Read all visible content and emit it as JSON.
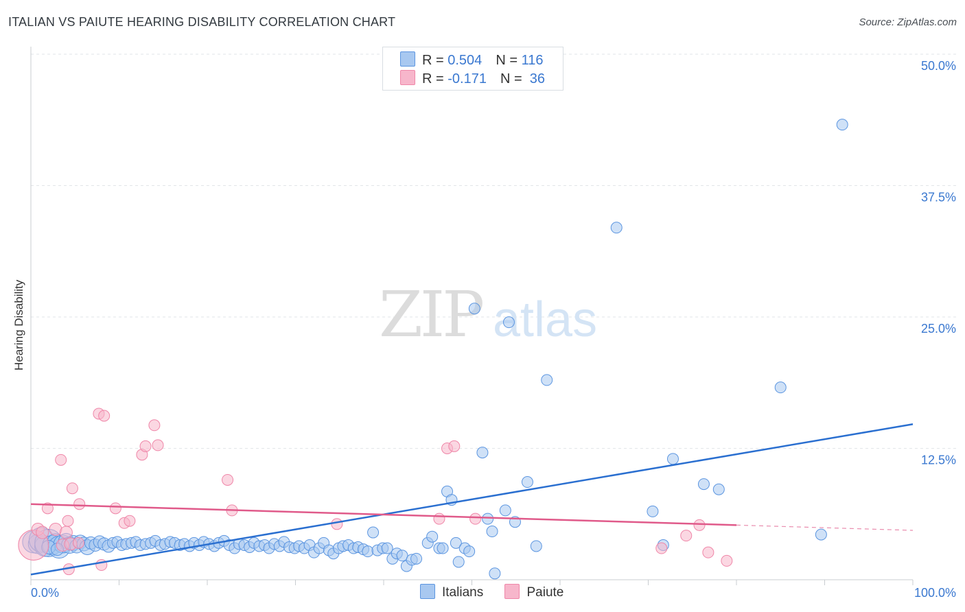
{
  "title": "ITALIAN VS PAIUTE HEARING DISABILITY CORRELATION CHART",
  "source": "Source: ZipAtlas.com",
  "watermark": {
    "part1": "ZIP",
    "part2": "atlas"
  },
  "legend_top": {
    "rows": [
      {
        "r_label": "R = ",
        "r_value": "0.504",
        "n_label": "N = ",
        "n_value": "116",
        "color": "#a8c8f0"
      },
      {
        "r_label": "R = ",
        "r_value": "-0.171",
        "n_label": "N = ",
        "n_value": " 36",
        "color": "#f7b6cb"
      }
    ]
  },
  "chart_data": {
    "type": "scatter",
    "title": "ITALIAN VS PAIUTE HEARING DISABILITY CORRELATION CHART",
    "xlabel": "",
    "ylabel": "Hearing Disability",
    "xlim": [
      0,
      100
    ],
    "ylim": [
      0,
      50
    ],
    "x_tick_labels": [
      {
        "value": 0,
        "label": "0.0%"
      },
      {
        "value": 100,
        "label": "100.0%"
      }
    ],
    "y_tick_labels": [
      {
        "value": 12.5,
        "label": "12.5%"
      },
      {
        "value": 25,
        "label": "25.0%"
      },
      {
        "value": 37.5,
        "label": "37.5%"
      },
      {
        "value": 50,
        "label": "50.0%"
      }
    ],
    "grid": true,
    "legend_position": "bottom-center",
    "series": [
      {
        "name": "Italians",
        "color": "#5b95e0",
        "fill": "#a8c8f0",
        "trend": {
          "x": [
            0,
            100
          ],
          "y": [
            0.5,
            14.8
          ],
          "color": "#2a6fd0",
          "dashed_from": null
        },
        "points": [
          [
            0.3,
            3.6,
            16
          ],
          [
            0.8,
            3.4,
            14
          ],
          [
            1.2,
            3.8,
            18
          ],
          [
            1.6,
            3.2,
            15
          ],
          [
            2.0,
            3.5,
            20
          ],
          [
            2.4,
            3.3,
            14
          ],
          [
            2.8,
            3.6,
            12
          ],
          [
            3.2,
            3.1,
            16
          ],
          [
            3.6,
            3.4,
            13
          ],
          [
            4.0,
            3.7,
            11
          ],
          [
            4.4,
            3.3,
            12
          ],
          [
            4.8,
            3.5,
            11
          ],
          [
            5.2,
            3.2,
            10
          ],
          [
            5.6,
            3.6,
            10
          ],
          [
            6.0,
            3.4,
            10
          ],
          [
            6.4,
            3.1,
            11
          ],
          [
            6.8,
            3.5,
            9
          ],
          [
            7.3,
            3.3,
            9
          ],
          [
            7.8,
            3.6,
            9
          ],
          [
            8.3,
            3.4,
            9
          ],
          [
            8.8,
            3.2,
            9
          ],
          [
            9.3,
            3.5,
            8
          ],
          [
            9.8,
            3.6,
            8
          ],
          [
            10.3,
            3.3,
            8
          ],
          [
            10.8,
            3.4,
            8
          ],
          [
            11.4,
            3.5,
            8
          ],
          [
            11.9,
            3.6,
            8
          ],
          [
            12.4,
            3.3,
            8
          ],
          [
            13.0,
            3.4,
            8
          ],
          [
            13.6,
            3.5,
            8
          ],
          [
            14.1,
            3.7,
            8
          ],
          [
            14.7,
            3.3,
            8
          ],
          [
            15.2,
            3.4,
            8
          ],
          [
            15.8,
            3.6,
            8
          ],
          [
            16.3,
            3.5,
            8
          ],
          [
            16.9,
            3.3,
            8
          ],
          [
            17.4,
            3.4,
            8
          ],
          [
            18.0,
            3.2,
            8
          ],
          [
            18.5,
            3.5,
            8
          ],
          [
            19.1,
            3.3,
            8
          ],
          [
            19.6,
            3.6,
            8
          ],
          [
            20.2,
            3.4,
            8
          ],
          [
            20.8,
            3.2,
            8
          ],
          [
            21.3,
            3.5,
            8
          ],
          [
            21.9,
            3.7,
            8
          ],
          [
            22.5,
            3.3,
            8
          ],
          [
            23.1,
            3.0,
            8
          ],
          [
            23.6,
            3.4,
            8
          ],
          [
            24.2,
            3.3,
            8
          ],
          [
            24.8,
            3.1,
            8
          ],
          [
            25.3,
            3.5,
            8
          ],
          [
            25.9,
            3.2,
            8
          ],
          [
            26.5,
            3.3,
            8
          ],
          [
            27.0,
            3.0,
            8
          ],
          [
            27.6,
            3.4,
            8
          ],
          [
            28.2,
            3.2,
            8
          ],
          [
            28.7,
            3.6,
            8
          ],
          [
            29.3,
            3.1,
            8
          ],
          [
            29.9,
            3.0,
            8
          ],
          [
            30.4,
            3.2,
            8
          ],
          [
            31.0,
            3.0,
            8
          ],
          [
            31.6,
            3.3,
            8
          ],
          [
            32.1,
            2.6,
            8
          ],
          [
            32.7,
            3.0,
            8
          ],
          [
            33.2,
            3.5,
            8
          ],
          [
            33.8,
            2.8,
            8
          ],
          [
            34.3,
            2.5,
            8
          ],
          [
            34.9,
            3.0,
            8
          ],
          [
            35.4,
            3.2,
            8
          ],
          [
            36.0,
            3.3,
            8
          ],
          [
            36.6,
            3.0,
            8
          ],
          [
            37.1,
            3.1,
            8
          ],
          [
            37.7,
            2.9,
            8
          ],
          [
            38.2,
            2.7,
            8
          ],
          [
            38.8,
            4.5,
            8
          ],
          [
            39.3,
            2.8,
            8
          ],
          [
            39.9,
            3.0,
            8
          ],
          [
            40.4,
            3.0,
            8
          ],
          [
            41.0,
            2.0,
            8
          ],
          [
            41.5,
            2.5,
            8
          ],
          [
            42.1,
            2.3,
            8
          ],
          [
            42.6,
            1.3,
            8
          ],
          [
            43.2,
            1.9,
            8
          ],
          [
            43.7,
            2.0,
            8
          ],
          [
            45.0,
            3.5,
            8
          ],
          [
            45.5,
            4.1,
            8
          ],
          [
            46.3,
            3.0,
            8
          ],
          [
            46.7,
            3.0,
            8
          ],
          [
            47.2,
            8.4,
            8
          ],
          [
            47.7,
            7.6,
            8
          ],
          [
            48.2,
            3.5,
            8
          ],
          [
            49.2,
            3.0,
            8
          ],
          [
            48.5,
            1.7,
            8
          ],
          [
            49.7,
            2.7,
            8
          ],
          [
            50.3,
            25.8,
            8
          ],
          [
            51.2,
            12.1,
            8
          ],
          [
            51.8,
            5.8,
            8
          ],
          [
            52.3,
            4.6,
            8
          ],
          [
            52.6,
            0.6,
            8
          ],
          [
            53.8,
            6.6,
            8
          ],
          [
            54.2,
            24.5,
            8
          ],
          [
            54.9,
            5.5,
            8
          ],
          [
            56.3,
            9.3,
            8
          ],
          [
            57.3,
            3.2,
            8
          ],
          [
            58.5,
            19.0,
            8
          ],
          [
            66.4,
            33.5,
            8
          ],
          [
            70.5,
            6.5,
            8
          ],
          [
            71.7,
            3.3,
            8
          ],
          [
            72.8,
            11.5,
            8
          ],
          [
            76.3,
            9.1,
            8
          ],
          [
            78.0,
            8.6,
            8
          ],
          [
            85.0,
            18.3,
            8
          ],
          [
            89.6,
            4.3,
            8
          ],
          [
            92.0,
            43.3,
            8
          ],
          [
            2.0,
            3.1,
            10
          ],
          [
            3.0,
            2.9,
            9
          ]
        ]
      },
      {
        "name": "Paiute",
        "color": "#ef86a8",
        "fill": "#f7b6cb",
        "trend": {
          "x": [
            0,
            100
          ],
          "y": [
            7.2,
            4.7
          ],
          "color": "#e05a8a",
          "dashed_from": 80
        },
        "points": [
          [
            0.3,
            3.3,
            22
          ],
          [
            0.8,
            4.8,
            9
          ],
          [
            1.3,
            4.5,
            9
          ],
          [
            1.9,
            6.8,
            8
          ],
          [
            2.8,
            4.8,
            9
          ],
          [
            3.4,
            11.4,
            8
          ],
          [
            3.6,
            3.3,
            9
          ],
          [
            4.0,
            4.5,
            9
          ],
          [
            4.2,
            5.6,
            8
          ],
          [
            4.3,
            1.0,
            8
          ],
          [
            4.5,
            3.4,
            9
          ],
          [
            4.7,
            8.7,
            8
          ],
          [
            5.4,
            3.5,
            8
          ],
          [
            5.5,
            7.2,
            8
          ],
          [
            7.7,
            15.8,
            8
          ],
          [
            8.0,
            1.4,
            8
          ],
          [
            8.3,
            15.6,
            8
          ],
          [
            9.6,
            6.8,
            8
          ],
          [
            10.6,
            5.4,
            8
          ],
          [
            11.2,
            5.6,
            8
          ],
          [
            12.6,
            11.9,
            8
          ],
          [
            13.0,
            12.7,
            8
          ],
          [
            14.0,
            14.7,
            8
          ],
          [
            14.4,
            12.8,
            8
          ],
          [
            22.3,
            9.5,
            8
          ],
          [
            22.8,
            6.6,
            8
          ],
          [
            34.7,
            5.3,
            8
          ],
          [
            46.3,
            5.8,
            8
          ],
          [
            47.2,
            12.5,
            8
          ],
          [
            48.0,
            12.7,
            8
          ],
          [
            50.4,
            5.8,
            8
          ],
          [
            71.5,
            3.0,
            8
          ],
          [
            74.3,
            4.2,
            8
          ],
          [
            75.8,
            5.2,
            8
          ],
          [
            76.8,
            2.6,
            8
          ],
          [
            78.9,
            1.8,
            8
          ]
        ]
      }
    ]
  },
  "bottom_legend": {
    "items": [
      {
        "label": "Italians",
        "color": "#a8c8f0",
        "border": "#5b95e0"
      },
      {
        "label": "Paiute",
        "color": "#f7b6cb",
        "border": "#ef86a8"
      }
    ]
  }
}
